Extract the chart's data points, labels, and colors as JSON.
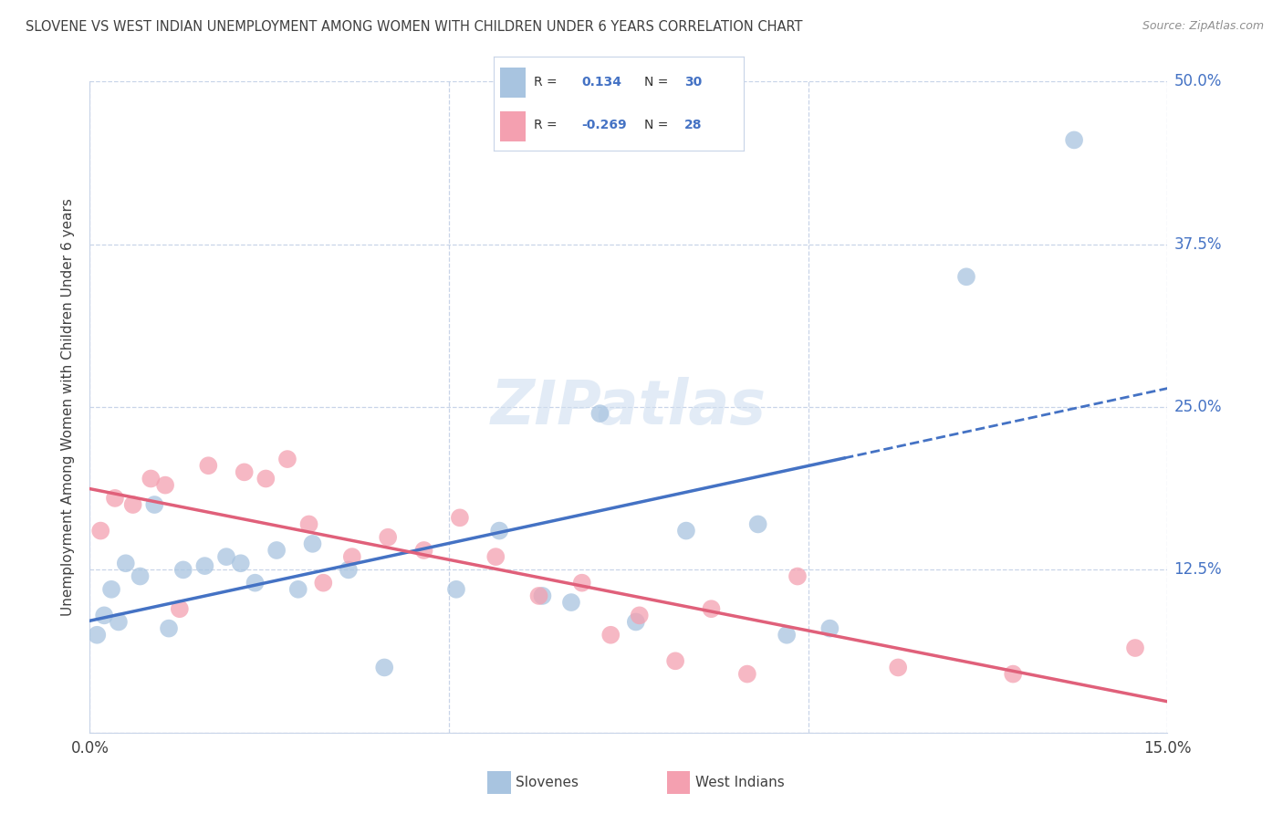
{
  "title": "SLOVENE VS WEST INDIAN UNEMPLOYMENT AMONG WOMEN WITH CHILDREN UNDER 6 YEARS CORRELATION CHART",
  "source": "Source: ZipAtlas.com",
  "ylabel": "Unemployment Among Women with Children Under 6 years",
  "xlim": [
    0.0,
    15.0
  ],
  "ylim": [
    0.0,
    50.0
  ],
  "xticks": [
    0.0,
    5.0,
    10.0,
    15.0
  ],
  "xticklabels": [
    "0.0%",
    "",
    "",
    "15.0%"
  ],
  "yticks": [
    0.0,
    12.5,
    25.0,
    37.5,
    50.0
  ],
  "yticklabels_right": [
    "",
    "12.5%",
    "25.0%",
    "37.5%",
    "50.0%"
  ],
  "slovene_scatter_color": "#a8c4e0",
  "west_indian_scatter_color": "#f4a0b0",
  "slovene_line_color": "#4472c4",
  "west_indian_line_color": "#e0607a",
  "R_slovene": "0.134",
  "N_slovene": "30",
  "R_west_indian": "-0.269",
  "N_west_indian": "28",
  "slovene_x": [
    0.1,
    0.2,
    0.3,
    0.4,
    0.5,
    0.7,
    0.9,
    1.1,
    1.3,
    1.6,
    1.9,
    2.1,
    2.3,
    2.6,
    2.9,
    3.1,
    3.6,
    4.1,
    5.1,
    5.7,
    6.3,
    6.7,
    7.1,
    7.6,
    8.3,
    9.3,
    9.7,
    10.3,
    12.2,
    13.7
  ],
  "slovene_y": [
    7.5,
    9.0,
    11.0,
    8.5,
    13.0,
    12.0,
    17.5,
    8.0,
    12.5,
    12.8,
    13.5,
    13.0,
    11.5,
    14.0,
    11.0,
    14.5,
    12.5,
    5.0,
    11.0,
    15.5,
    10.5,
    10.0,
    24.5,
    8.5,
    15.5,
    16.0,
    7.5,
    8.0,
    35.0,
    45.5
  ],
  "west_indian_x": [
    0.15,
    0.35,
    0.6,
    0.85,
    1.05,
    1.25,
    1.65,
    2.15,
    2.45,
    2.75,
    3.05,
    3.25,
    3.65,
    4.15,
    4.65,
    5.15,
    5.65,
    6.25,
    6.85,
    7.25,
    7.65,
    8.15,
    8.65,
    9.15,
    9.85,
    11.25,
    12.85,
    14.55
  ],
  "west_indian_y": [
    15.5,
    18.0,
    17.5,
    19.5,
    19.0,
    9.5,
    20.5,
    20.0,
    19.5,
    21.0,
    16.0,
    11.5,
    13.5,
    15.0,
    14.0,
    16.5,
    13.5,
    10.5,
    11.5,
    7.5,
    9.0,
    5.5,
    9.5,
    4.5,
    12.0,
    5.0,
    4.5,
    6.5
  ],
  "background_color": "#ffffff",
  "grid_color": "#c8d4e8",
  "title_color": "#404040",
  "value_color": "#4472c4",
  "axis_label_color": "#404040",
  "legend_text_color": "#333333",
  "watermark_color": "#d0dff0",
  "slovene_legend_color": "#a8c4e0",
  "west_indian_legend_color": "#f4a0b0",
  "blue_dashed_start_x": 10.5
}
